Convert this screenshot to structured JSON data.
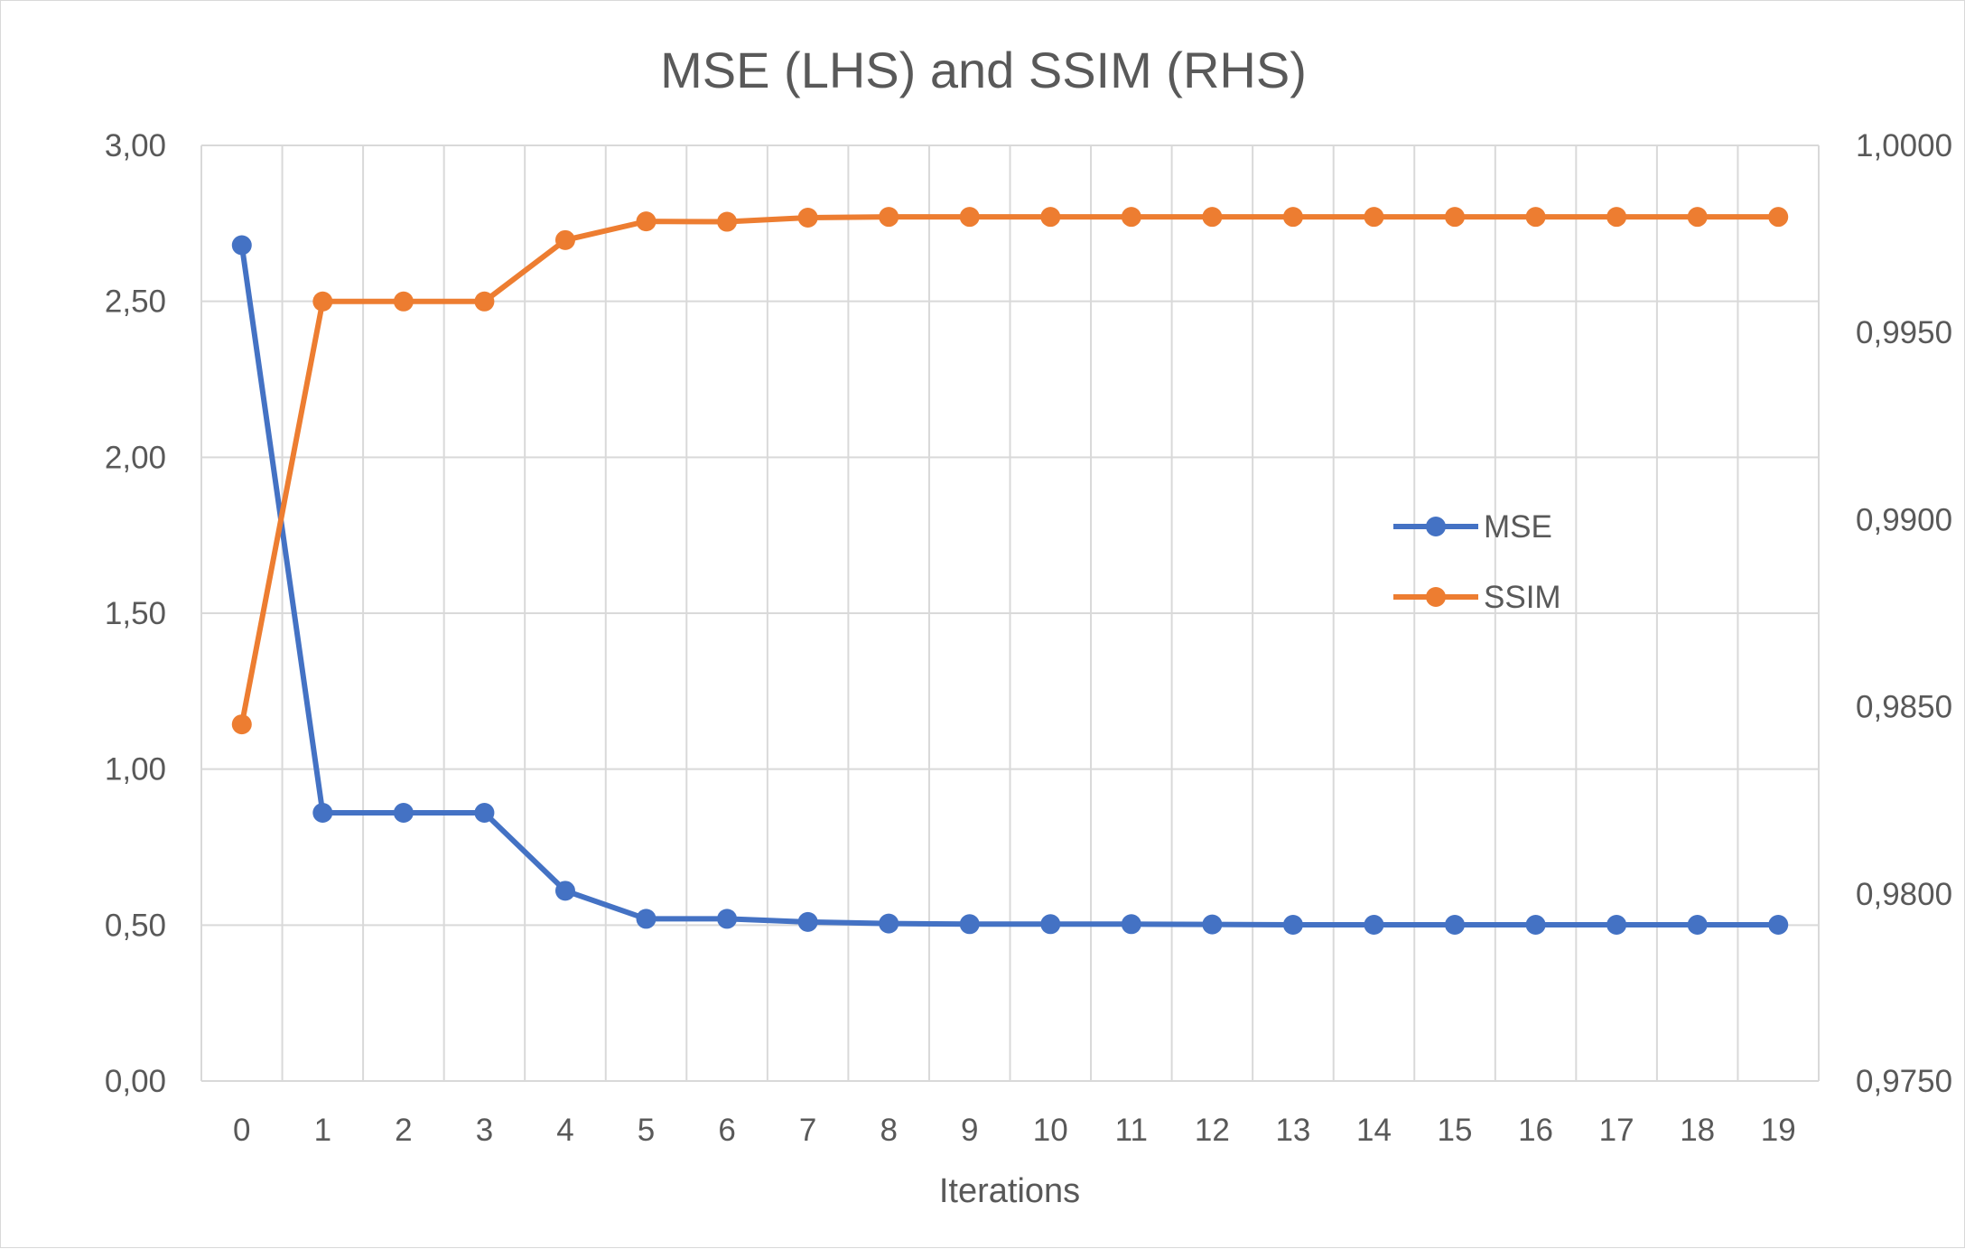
{
  "chart_data": {
    "type": "line",
    "title": "MSE (LHS) and SSIM (RHS)",
    "xlabel": "Iterations",
    "ylabel": "",
    "y2label": "",
    "categories": [
      "0",
      "1",
      "2",
      "3",
      "4",
      "5",
      "6",
      "7",
      "8",
      "9",
      "10",
      "11",
      "12",
      "13",
      "14",
      "15",
      "16",
      "17",
      "18",
      "19"
    ],
    "ylim": [
      0,
      3
    ],
    "y_ticks": [
      "0,00",
      "0,50",
      "1,00",
      "1,50",
      "2,00",
      "2,50",
      "3,00"
    ],
    "y2lim": [
      0.975,
      1.0
    ],
    "y2_ticks": [
      "0,9750",
      "0,9800",
      "0,9850",
      "0,9900",
      "0,9950",
      "1,0000"
    ],
    "grid": true,
    "legend_position": "right",
    "series": [
      {
        "name": "MSE",
        "axis": "left",
        "color": "#4472c4",
        "values": [
          2.68,
          0.86,
          0.86,
          0.86,
          0.61,
          0.52,
          0.52,
          0.51,
          0.505,
          0.503,
          0.503,
          0.503,
          0.502,
          0.501,
          0.501,
          0.501,
          0.501,
          0.501,
          0.501,
          0.501
        ]
      },
      {
        "name": "SSIM",
        "axis": "right",
        "color": "#ed7d31",
        "values": [
          0.98453,
          0.99583,
          0.99583,
          0.99583,
          0.99747,
          0.99797,
          0.99796,
          0.99807,
          0.99809,
          0.99809,
          0.99809,
          0.99809,
          0.99809,
          0.99809,
          0.99809,
          0.99809,
          0.99809,
          0.99809,
          0.99809,
          0.99809
        ]
      }
    ]
  }
}
